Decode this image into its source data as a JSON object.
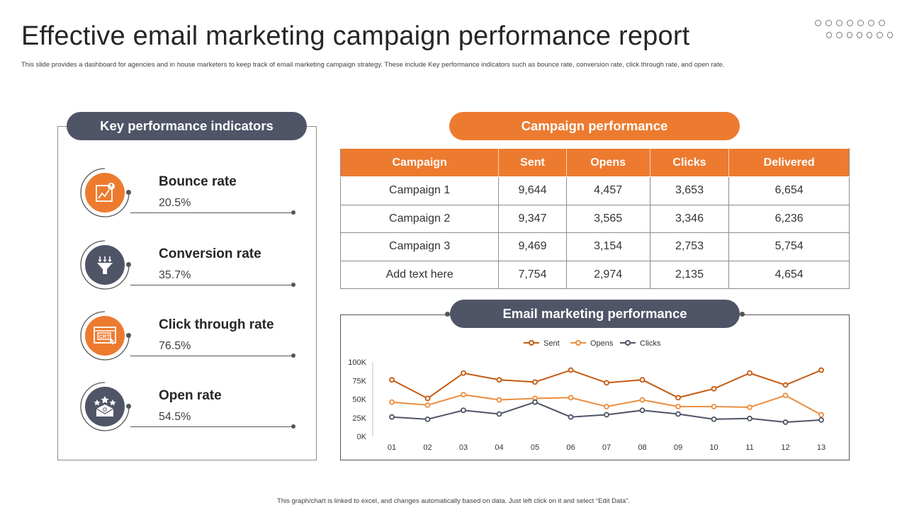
{
  "header": {
    "title": "Effective email marketing campaign performance report",
    "subtitle": "This slide provides a dashboard for agencies and in house marketers to keep track of email marketing campaign strategy. These include Key performance indicators such as bounce rate, conversion rate, click through rate, and open rate."
  },
  "footer": {
    "note": "This graph/chart is linked to excel, and changes automatically based on data. Just left click on it and select “Edit Data”."
  },
  "kpi": {
    "heading": "Key performance indicators",
    "items": [
      {
        "label": "Bounce rate",
        "value": "20.5%",
        "icon": "bounce-chart-icon",
        "color": "#ec7b30"
      },
      {
        "label": "Conversion rate",
        "value": "35.7%",
        "icon": "funnel-icon",
        "color": "#4f5467"
      },
      {
        "label": "Click through rate",
        "value": "76.5%",
        "icon": "ctr-browser-icon",
        "color": "#ec7b30"
      },
      {
        "label": "Open rate",
        "value": "54.5%",
        "icon": "email-stars-icon",
        "color": "#4f5467"
      }
    ]
  },
  "campaign": {
    "heading": "Campaign performance",
    "columns": [
      "Campaign",
      "Sent",
      "Opens",
      "Clicks",
      "Delivered"
    ],
    "rows": [
      [
        "Campaign 1",
        "9,644",
        "4,457",
        "3,653",
        "6,654"
      ],
      [
        "Campaign 2",
        "9,347",
        "3,565",
        "3,346",
        "6,236"
      ],
      [
        "Campaign 3",
        "9,469",
        "3,154",
        "2,753",
        "5,754"
      ],
      [
        "Add text here",
        "7,754",
        "2,974",
        "2,135",
        "4,654"
      ]
    ]
  },
  "colors": {
    "orange": "#ec7b30",
    "dark": "#4f5467",
    "sent": "#c55a11",
    "opens": "#ed8d3e",
    "clicks": "#4f5467"
  },
  "chart_data": {
    "type": "line",
    "title": "Email marketing performance",
    "categories": [
      "01",
      "02",
      "03",
      "04",
      "05",
      "06",
      "07",
      "08",
      "09",
      "10",
      "11",
      "12",
      "13"
    ],
    "series": [
      {
        "name": "Sent",
        "color": "#c55a11",
        "values": [
          76,
          51,
          85,
          76,
          73,
          89,
          72,
          76,
          52,
          64,
          85,
          69,
          89
        ]
      },
      {
        "name": "Opens",
        "color": "#ed8d3e",
        "values": [
          46,
          42,
          56,
          49,
          51,
          52,
          40,
          49,
          40,
          40,
          39,
          55,
          29
        ]
      },
      {
        "name": "Clicks",
        "color": "#4f5467",
        "values": [
          26,
          23,
          35,
          30,
          46,
          26,
          29,
          35,
          30,
          23,
          24,
          19,
          22
        ]
      }
    ],
    "y_ticks": [
      "0K",
      "25K",
      "50K",
      "75K",
      "100K"
    ],
    "ylim": [
      0,
      100
    ],
    "xlabel": "",
    "ylabel": "",
    "legend": "top-center",
    "grid": false
  }
}
